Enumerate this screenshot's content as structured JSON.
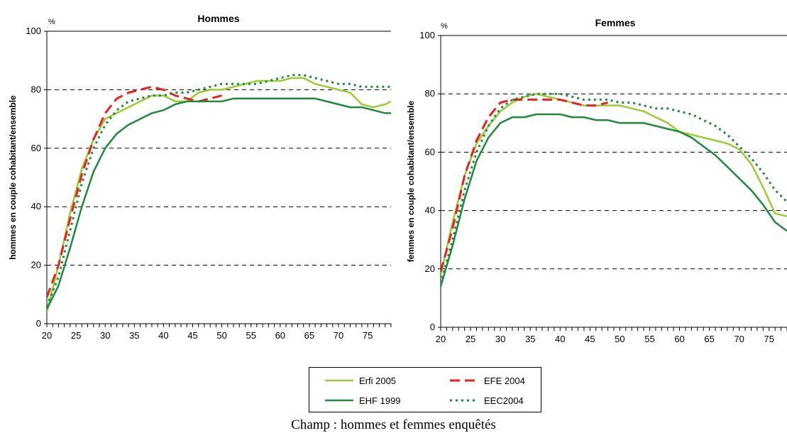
{
  "caption": "Champ : hommes et femmes enquêtés",
  "legend": {
    "items": [
      {
        "label": "Erfi 2005",
        "key": "erfi"
      },
      {
        "label": "EFE 2004",
        "key": "efe"
      },
      {
        "label": "EHF 1999",
        "key": "ehf"
      },
      {
        "label": "EEC2004",
        "key": "eec"
      }
    ]
  },
  "series_styles": {
    "erfi": {
      "color": "#99cc33",
      "dash": "none",
      "width": 2.5
    },
    "efe": {
      "color": "#e8231f",
      "dash": "14,7",
      "width": 3
    },
    "ehf": {
      "color": "#1f8a3a",
      "dash": "none",
      "width": 2.5
    },
    "eec": {
      "color": "#1f8a3a",
      "dash": "3,5",
      "width": 3
    }
  },
  "chart_data": [
    {
      "type": "line",
      "title": "Hommes",
      "unit": "%",
      "ylabel": "hommes en couple cohabitant/ensemble",
      "xlabel": "",
      "xlim": [
        20,
        79
      ],
      "ylim": [
        0,
        100
      ],
      "xticks": [
        20,
        25,
        30,
        35,
        40,
        45,
        50,
        55,
        60,
        65,
        70,
        75
      ],
      "yticks": [
        0,
        20,
        40,
        60,
        80,
        100
      ],
      "grid": "horizontal dashed at 20, 40, 60, 80",
      "series": [
        {
          "key": "erfi",
          "name": "Erfi 2005",
          "x": [
            20,
            22,
            24,
            26,
            28,
            30,
            32,
            34,
            36,
            38,
            40,
            42,
            44,
            46,
            48,
            50,
            52,
            54,
            56,
            58,
            60,
            62,
            64,
            66,
            68,
            70,
            72,
            74,
            76,
            78,
            79
          ],
          "y": [
            4,
            20,
            38,
            53,
            63,
            70,
            72,
            74,
            76,
            78,
            78,
            76,
            76,
            79,
            80,
            80,
            81,
            82,
            83,
            83,
            83,
            84,
            84,
            82,
            81,
            80,
            79,
            75,
            74,
            75,
            76
          ]
        },
        {
          "key": "efe",
          "name": "EFE 2004",
          "x": [
            20,
            22,
            24,
            26,
            28,
            30,
            32,
            34,
            36,
            38,
            40,
            41,
            42,
            44,
            46,
            48,
            50
          ],
          "y": [
            9,
            20,
            36,
            51,
            63,
            72,
            77,
            79,
            80,
            81,
            80,
            79,
            78,
            77,
            76,
            77,
            78
          ]
        },
        {
          "key": "ehf",
          "name": "EHF 1999",
          "x": [
            20,
            22,
            24,
            26,
            28,
            30,
            32,
            34,
            36,
            38,
            40,
            42,
            44,
            46,
            48,
            50,
            52,
            54,
            56,
            58,
            60,
            62,
            64,
            66,
            68,
            70,
            72,
            74,
            76,
            78,
            79
          ],
          "y": [
            5,
            13,
            26,
            40,
            52,
            60,
            65,
            68,
            70,
            72,
            73,
            75,
            76,
            76,
            76,
            76,
            77,
            77,
            77,
            77,
            77,
            77,
            77,
            77,
            76,
            75,
            74,
            74,
            73,
            72,
            72
          ]
        },
        {
          "key": "eec",
          "name": "EEC2004",
          "x": [
            20,
            22,
            24,
            26,
            28,
            30,
            32,
            34,
            36,
            38,
            40,
            42,
            44,
            46,
            48,
            50,
            52,
            54,
            56,
            58,
            60,
            62,
            64,
            66,
            68,
            70,
            72,
            74,
            76,
            78,
            79
          ],
          "y": [
            6,
            16,
            32,
            48,
            60,
            68,
            73,
            76,
            77,
            78,
            78,
            79,
            79,
            80,
            81,
            82,
            82,
            82,
            82,
            83,
            84,
            85,
            85,
            84,
            83,
            82,
            82,
            81,
            81,
            81,
            81
          ]
        }
      ]
    },
    {
      "type": "line",
      "title": "Femmes",
      "unit": "%",
      "ylabel": "femmes en couple cohabitant/ensemble",
      "xlabel": "",
      "xlim": [
        20,
        78
      ],
      "ylim": [
        0,
        100
      ],
      "xticks": [
        20,
        25,
        30,
        35,
        40,
        45,
        50,
        55,
        60,
        65,
        70,
        75
      ],
      "yticks": [
        0,
        20,
        40,
        60,
        80,
        100
      ],
      "grid": "horizontal dashed at 20, 40, 60, 80",
      "series": [
        {
          "key": "erfi",
          "name": "Erfi 2005",
          "x": [
            20,
            22,
            24,
            26,
            28,
            30,
            32,
            34,
            36,
            38,
            40,
            42,
            44,
            46,
            48,
            50,
            52,
            54,
            56,
            58,
            60,
            62,
            64,
            66,
            68,
            70,
            72,
            74,
            76,
            78
          ],
          "y": [
            18,
            36,
            52,
            63,
            69,
            74,
            77,
            79,
            80,
            79,
            78,
            77,
            76,
            76,
            76,
            76,
            75,
            74,
            72,
            70,
            67,
            66,
            65,
            64,
            63,
            61,
            56,
            48,
            39,
            38
          ]
        },
        {
          "key": "efe",
          "name": "EFE 2004",
          "x": [
            20,
            22,
            24,
            26,
            28,
            30,
            32,
            34,
            36,
            38,
            40,
            42,
            44,
            46,
            48
          ],
          "y": [
            19,
            34,
            52,
            64,
            72,
            77,
            78,
            78,
            78,
            78,
            78,
            77,
            76,
            76,
            77
          ]
        },
        {
          "key": "ehf",
          "name": "EHF 1999",
          "x": [
            20,
            22,
            24,
            26,
            28,
            30,
            32,
            34,
            36,
            38,
            40,
            42,
            44,
            46,
            48,
            50,
            52,
            54,
            56,
            58,
            60,
            62,
            64,
            66,
            68,
            70,
            72,
            74,
            76,
            78
          ],
          "y": [
            14,
            28,
            44,
            57,
            65,
            70,
            72,
            72,
            73,
            73,
            73,
            72,
            72,
            71,
            71,
            70,
            70,
            70,
            69,
            68,
            67,
            65,
            62,
            59,
            55,
            51,
            47,
            42,
            36,
            33
          ]
        },
        {
          "key": "eec",
          "name": "EEC2004",
          "x": [
            20,
            22,
            24,
            26,
            28,
            30,
            32,
            34,
            36,
            38,
            40,
            42,
            44,
            46,
            48,
            50,
            52,
            54,
            56,
            58,
            60,
            62,
            64,
            66,
            68,
            70,
            72,
            74,
            76,
            78
          ],
          "y": [
            15,
            30,
            47,
            60,
            69,
            75,
            78,
            79,
            80,
            80,
            80,
            79,
            78,
            78,
            78,
            77,
            77,
            76,
            75,
            75,
            74,
            73,
            71,
            69,
            66,
            62,
            58,
            53,
            47,
            43
          ]
        }
      ]
    }
  ]
}
